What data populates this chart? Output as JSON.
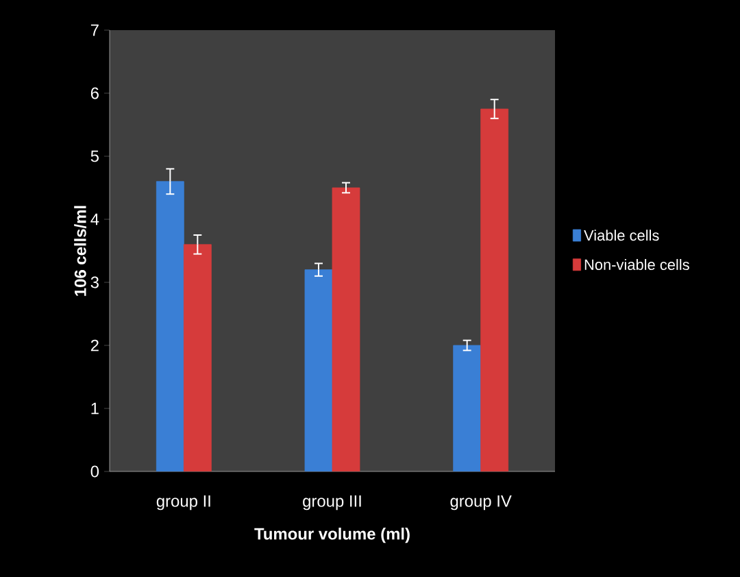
{
  "chart_data": {
    "type": "bar",
    "xlabel": "Tumour volume (ml)",
    "ylabel": "106 cells/ml",
    "categories": [
      "group II",
      "group III",
      "group IV"
    ],
    "series": [
      {
        "name": "Viable cells",
        "color": "#3a7fd5",
        "values": [
          4.6,
          3.2,
          2.0
        ],
        "errors": [
          0.2,
          0.1,
          0.08
        ]
      },
      {
        "name": "Non-viable cells",
        "color": "#d63b3b",
        "values": [
          3.6,
          4.5,
          5.75
        ],
        "errors": [
          0.15,
          0.08,
          0.15
        ]
      }
    ],
    "ylim": [
      0,
      7
    ],
    "yticks": [
      0,
      1,
      2,
      3,
      4,
      5,
      6,
      7
    ],
    "legend": "right"
  }
}
